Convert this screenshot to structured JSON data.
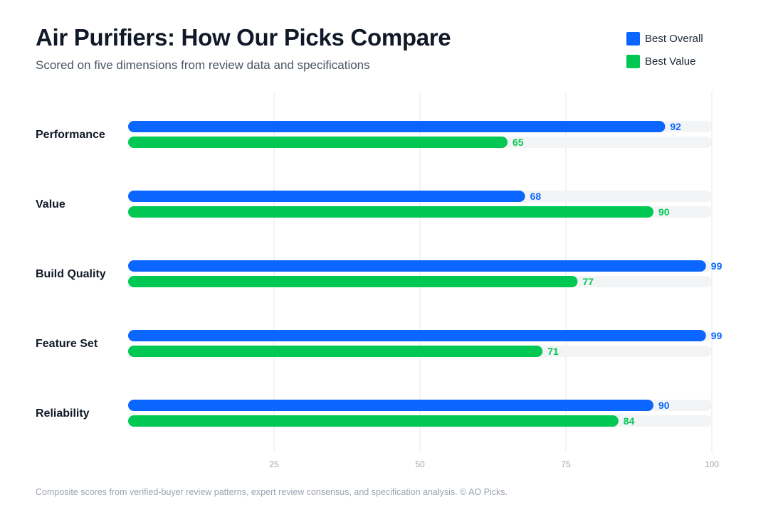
{
  "header": {
    "title": "Air Purifiers: How Our Picks Compare",
    "subtitle": "Scored on five dimensions from review data and specifications"
  },
  "legend": {
    "items": [
      {
        "label": "Best Overall",
        "color": "#0a66ff"
      },
      {
        "label": "Best Value",
        "color": "#00c853"
      }
    ]
  },
  "chart_data": {
    "type": "bar",
    "orientation": "horizontal",
    "categories": [
      "Performance",
      "Value",
      "Build Quality",
      "Feature Set",
      "Reliability"
    ],
    "series": [
      {
        "name": "Best Overall",
        "color": "#0a66ff",
        "values": [
          92,
          68,
          99,
          99,
          90
        ]
      },
      {
        "name": "Best Value",
        "color": "#00c853",
        "values": [
          65,
          90,
          77,
          71,
          84
        ]
      }
    ],
    "xlim": [
      0,
      100
    ],
    "x_ticks": [
      25,
      50,
      75,
      100
    ],
    "grid": true,
    "data_labels": true,
    "legend_position": "top-right"
  },
  "footer": {
    "text": "Composite scores from verified-buyer review patterns, expert review consensus, and specification analysis. © AO Picks."
  },
  "colors": {
    "track": "#f3f4f6",
    "grid": "#e5e7eb",
    "tick_label": "#9ca3af"
  }
}
